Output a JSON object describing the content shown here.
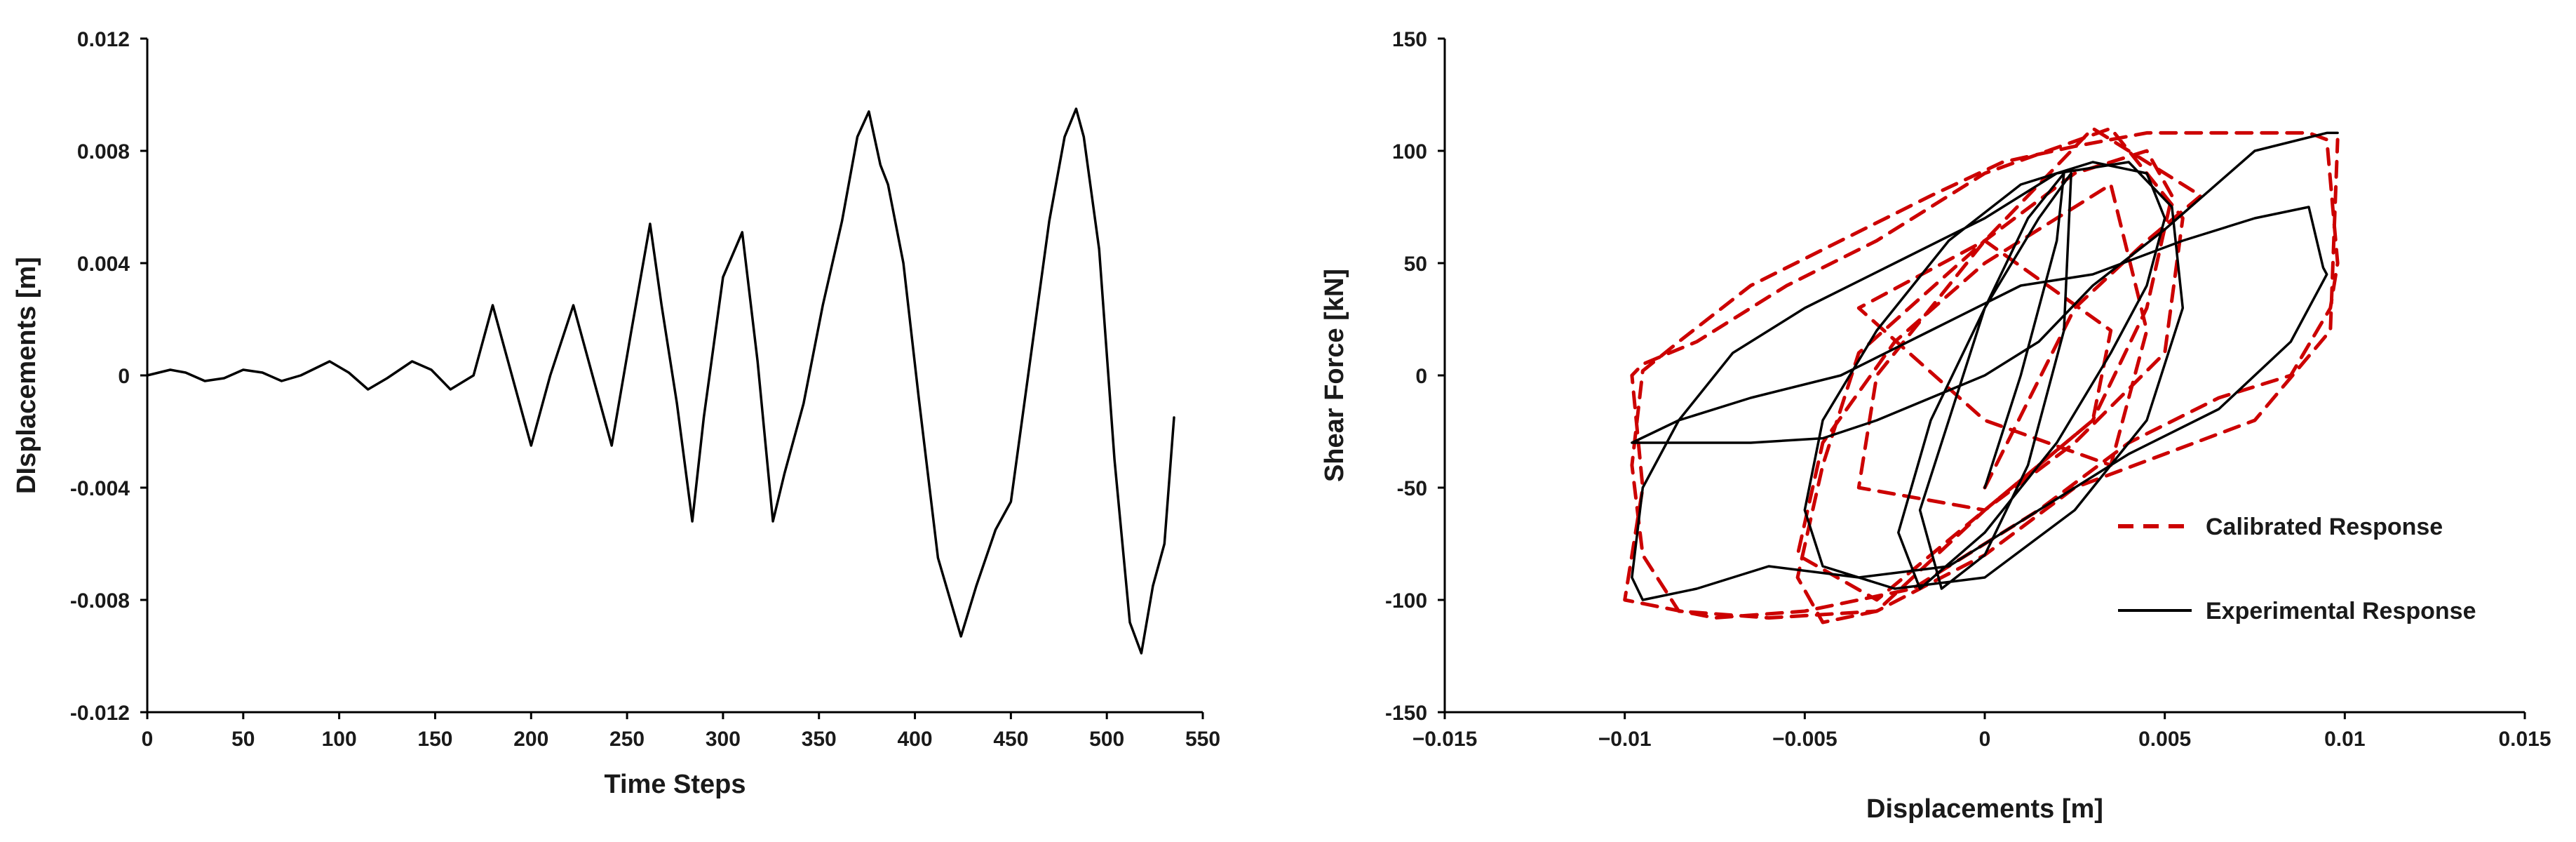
{
  "chart_data": [
    {
      "type": "line",
      "title": "",
      "xlabel": "Time Steps",
      "ylabel": "DIsplacements [m]",
      "xlim": [
        0,
        550
      ],
      "ylim": [
        -0.012,
        0.012
      ],
      "x_ticks": [
        "0",
        "50",
        "100",
        "150",
        "200",
        "250",
        "300",
        "350",
        "400",
        "450",
        "500",
        "550"
      ],
      "y_ticks": [
        "0.012",
        "0.008",
        "0.004",
        "0",
        "-0.004",
        "-0.008",
        "-0.012"
      ],
      "grid": false,
      "series": [
        {
          "color": "#000000",
          "x": [
            0,
            12,
            20,
            30,
            40,
            50,
            60,
            70,
            80,
            95,
            105,
            115,
            125,
            138,
            148,
            158,
            170,
            180,
            190,
            200,
            210,
            222,
            232,
            242,
            252,
            262,
            268,
            276,
            284,
            290,
            300,
            310,
            318,
            326,
            332,
            342,
            352,
            362,
            370,
            376,
            382,
            386,
            394,
            402,
            412,
            424,
            432,
            442,
            450,
            460,
            470,
            478,
            484,
            488,
            496,
            504,
            512,
            518,
            524,
            530,
            535
          ],
          "y": [
            0,
            0.0002,
            0.0001,
            -0.0002,
            -0.0001,
            0.0002,
            0.0001,
            -0.0002,
            0.0,
            0.0005,
            0.0001,
            -0.0005,
            -0.0001,
            0.0005,
            0.0002,
            -0.0005,
            0.0,
            0.0025,
            0.0,
            -0.0025,
            0.0,
            0.0025,
            0.0,
            -0.0025,
            0.0015,
            0.0054,
            0.0025,
            -0.001,
            -0.0052,
            -0.0015,
            0.0035,
            0.0051,
            0.0005,
            -0.0052,
            -0.0035,
            -0.001,
            0.0025,
            0.0055,
            0.0085,
            0.0094,
            0.0075,
            0.0068,
            0.004,
            -0.0008,
            -0.0065,
            -0.0093,
            -0.0075,
            -0.0055,
            -0.0045,
            0.0005,
            0.0055,
            0.0085,
            0.0095,
            0.0085,
            0.0045,
            -0.003,
            -0.0088,
            -0.0099,
            -0.0075,
            -0.006,
            -0.0015
          ]
        }
      ]
    },
    {
      "type": "line",
      "title": "",
      "xlabel": "Displacements [m]",
      "ylabel": "Shear Force [kN]",
      "xlim": [
        -0.015,
        0.015
      ],
      "ylim": [
        -150,
        150
      ],
      "x_ticks": [
        "−0.015",
        "−0.01",
        "−0.005",
        "0",
        "0.005",
        "0.01",
        "0.015"
      ],
      "y_ticks": [
        "150",
        "100",
        "50",
        "0",
        "-50",
        "-100",
        "-150"
      ],
      "grid": false,
      "legend_position": "lower-right",
      "series": [
        {
          "name": "Calibrated Response",
          "color": "#cc0000",
          "dash": "dashed",
          "x": [
            0.0,
            0.0025,
            0.0045,
            0.006,
            0.003,
            0.0,
            -0.003,
            -0.0035,
            0.0,
            0.003,
            0.0035,
            0.0,
            -0.0035,
            0.0,
            0.0035,
            0.0045,
            0.0035,
            0.0,
            -0.0025,
            -0.0045,
            -0.0052,
            -0.003,
            0.0,
            0.003,
            0.0045,
            0.0052,
            0.0045,
            0.0025,
            0.0,
            -0.0035,
            -0.0045,
            -0.0052,
            -0.0045,
            -0.003,
            0.0,
            0.0025,
            0.005,
            0.0055,
            0.0035,
            0.0,
            -0.003,
            -0.0055,
            -0.008,
            -0.0095,
            -0.0098,
            -0.0095,
            -0.01,
            -0.0075,
            -0.005,
            -0.002,
            0.0015,
            0.004,
            0.0065,
            0.0085,
            0.0096,
            0.0098,
            0.0095,
            0.009,
            0.0075,
            0.0045,
            0.0025,
            0.0005,
            -0.0015,
            -0.004,
            -0.0065,
            -0.0085,
            -0.0095,
            -0.0098,
            -0.0095,
            -0.0085,
            -0.006,
            -0.003,
            0.0,
            0.0025,
            0.005,
            0.0075,
            0.0096,
            0.0098
          ],
          "y": [
            -50,
            30,
            60,
            80,
            110,
            60,
            0,
            -50,
            -60,
            -20,
            20,
            60,
            30,
            -20,
            -40,
            20,
            85,
            50,
            15,
            -30,
            -80,
            -100,
            -60,
            -20,
            30,
            80,
            100,
            90,
            60,
            10,
            -40,
            -90,
            -110,
            -105,
            -60,
            -30,
            10,
            70,
            110,
            90,
            60,
            40,
            15,
            5,
            0,
            -50,
            -100,
            -108,
            -105,
            -95,
            -60,
            -30,
            -10,
            0,
            30,
            50,
            105,
            108,
            108,
            108,
            102,
            95,
            80,
            60,
            40,
            15,
            2,
            -40,
            -80,
            -105,
            -108,
            -105,
            -80,
            -50,
            -35,
            -20,
            20,
            105
          ]
        },
        {
          "name": "Experimental Response",
          "color": "#000000",
          "dash": "solid",
          "x": [
            0.0,
            0.001,
            0.002,
            0.0022,
            0.0012,
            0.0,
            -0.001,
            -0.0018,
            -0.0012,
            0.0,
            0.0012,
            0.0022,
            0.0024,
            0.0015,
            0.0,
            -0.0015,
            -0.0024,
            -0.0018,
            0.0,
            0.002,
            0.0035,
            0.0045,
            0.005,
            0.0045,
            0.003,
            0.001,
            -0.001,
            -0.003,
            -0.0045,
            -0.005,
            -0.0045,
            -0.0025,
            0.0,
            0.0025,
            0.0045,
            0.0055,
            0.0052,
            0.004,
            0.002,
            0.0,
            -0.0025,
            -0.005,
            -0.007,
            -0.0085,
            -0.0095,
            -0.0098,
            -0.0095,
            -0.008,
            -0.006,
            -0.0035,
            -0.001,
            0.0015,
            0.004,
            0.0065,
            0.0085,
            0.0095,
            0.0094,
            0.009,
            0.0075,
            0.0055,
            0.003,
            0.001,
            -0.0015,
            -0.004,
            -0.0065,
            -0.0085,
            -0.0098,
            -0.0095,
            -0.0085,
            -0.0065,
            -0.0045,
            -0.003,
            -0.0015,
            0.0,
            0.0015,
            0.003,
            0.005,
            0.0075,
            0.0095,
            0.0098
          ],
          "y": [
            -50,
            0,
            60,
            90,
            70,
            30,
            -20,
            -60,
            -95,
            -80,
            -40,
            20,
            90,
            70,
            30,
            -20,
            -70,
            -95,
            -70,
            -30,
            10,
            40,
            70,
            90,
            95,
            85,
            60,
            20,
            -20,
            -60,
            -85,
            -95,
            -90,
            -60,
            -20,
            30,
            75,
            95,
            90,
            70,
            50,
            30,
            10,
            -20,
            -50,
            -90,
            -100,
            -95,
            -85,
            -90,
            -85,
            -60,
            -35,
            -15,
            15,
            45,
            48,
            75,
            70,
            60,
            45,
            40,
            20,
            0,
            -10,
            -20,
            -30,
            -30,
            -30,
            -30,
            -28,
            -20,
            -10,
            0,
            15,
            40,
            65,
            100,
            108,
            108
          ]
        }
      ]
    }
  ]
}
